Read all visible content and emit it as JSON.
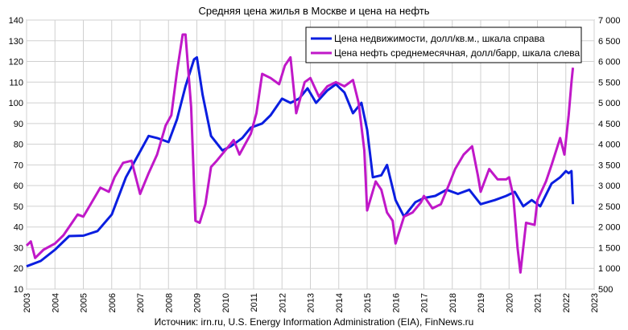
{
  "chart_data": {
    "type": "line",
    "title": "Средняя цена жилья в Москве и цена на нефть",
    "source": "Источник: irn.ru, U.S. Energy Information Administration (EIA), FinNews.ru",
    "x_ticks": [
      "2003",
      "2004",
      "2005",
      "2006",
      "2007",
      "2008",
      "2009",
      "2010",
      "2011",
      "2012",
      "2013",
      "2014",
      "2015",
      "2016",
      "2017",
      "2018",
      "2019",
      "2020",
      "2021",
      "2022",
      "2023"
    ],
    "xlim": [
      2003,
      2023
    ],
    "y_left": {
      "ylim": [
        10,
        140
      ],
      "ticks": [
        "10",
        "20",
        "30",
        "40",
        "50",
        "60",
        "70",
        "80",
        "90",
        "100",
        "110",
        "120",
        "130",
        "140"
      ]
    },
    "y_right": {
      "ylim": [
        500,
        7000
      ],
      "ticks": [
        "500",
        "1 000",
        "1 500",
        "2 000",
        "2 500",
        "3 000",
        "3 500",
        "4 000",
        "4 500",
        "5 000",
        "5 500",
        "6 000",
        "6 500",
        "7 000"
      ]
    },
    "grid": true,
    "legend_position": "top-right",
    "series": [
      {
        "name": "Цена недвижимости, долл/кв.м., шкала справа",
        "color": "#0a1ee0",
        "axis": "right",
        "points": [
          [
            2003.0,
            1050
          ],
          [
            2003.5,
            1180
          ],
          [
            2004.0,
            1450
          ],
          [
            2004.5,
            1780
          ],
          [
            2005.0,
            1790
          ],
          [
            2005.5,
            1900
          ],
          [
            2006.0,
            2300
          ],
          [
            2006.5,
            3200
          ],
          [
            2006.9,
            3700
          ],
          [
            2007.3,
            4200
          ],
          [
            2007.6,
            4150
          ],
          [
            2008.0,
            4050
          ],
          [
            2008.3,
            4600
          ],
          [
            2008.6,
            5400
          ],
          [
            2008.9,
            6050
          ],
          [
            2009.0,
            6100
          ],
          [
            2009.2,
            5200
          ],
          [
            2009.5,
            4200
          ],
          [
            2009.9,
            3850
          ],
          [
            2010.2,
            3950
          ],
          [
            2010.6,
            4150
          ],
          [
            2010.9,
            4400
          ],
          [
            2011.3,
            4500
          ],
          [
            2011.6,
            4700
          ],
          [
            2012.0,
            5100
          ],
          [
            2012.3,
            5000
          ],
          [
            2012.6,
            5100
          ],
          [
            2012.9,
            5350
          ],
          [
            2013.2,
            5000
          ],
          [
            2013.6,
            5300
          ],
          [
            2013.9,
            5450
          ],
          [
            2014.2,
            5250
          ],
          [
            2014.5,
            4750
          ],
          [
            2014.8,
            5000
          ],
          [
            2015.0,
            4350
          ],
          [
            2015.2,
            3200
          ],
          [
            2015.5,
            3250
          ],
          [
            2015.7,
            3500
          ],
          [
            2016.0,
            2650
          ],
          [
            2016.3,
            2250
          ],
          [
            2016.7,
            2600
          ],
          [
            2017.0,
            2700
          ],
          [
            2017.4,
            2750
          ],
          [
            2017.8,
            2900
          ],
          [
            2018.2,
            2800
          ],
          [
            2018.6,
            2900
          ],
          [
            2019.0,
            2550
          ],
          [
            2019.5,
            2650
          ],
          [
            2019.9,
            2750
          ],
          [
            2020.2,
            2850
          ],
          [
            2020.5,
            2500
          ],
          [
            2020.8,
            2650
          ],
          [
            2021.1,
            2500
          ],
          [
            2021.5,
            3050
          ],
          [
            2021.8,
            3200
          ],
          [
            2022.0,
            3350
          ],
          [
            2022.1,
            3300
          ],
          [
            2022.2,
            3350
          ],
          [
            2022.25,
            2550
          ]
        ]
      },
      {
        "name": "Цена нефть среднемесячная, долл/барр, шкала слева",
        "color": "#c018c8",
        "axis": "left",
        "points": [
          [
            2003.0,
            31
          ],
          [
            2003.15,
            33
          ],
          [
            2003.3,
            25
          ],
          [
            2003.6,
            29
          ],
          [
            2004.0,
            32
          ],
          [
            2004.3,
            36
          ],
          [
            2004.6,
            42
          ],
          [
            2004.8,
            46
          ],
          [
            2005.0,
            45
          ],
          [
            2005.3,
            52
          ],
          [
            2005.6,
            59
          ],
          [
            2005.9,
            57
          ],
          [
            2006.1,
            64
          ],
          [
            2006.4,
            71
          ],
          [
            2006.7,
            72
          ],
          [
            2007.0,
            56
          ],
          [
            2007.3,
            66
          ],
          [
            2007.6,
            75
          ],
          [
            2007.9,
            89
          ],
          [
            2008.1,
            94
          ],
          [
            2008.3,
            115
          ],
          [
            2008.5,
            133
          ],
          [
            2008.6,
            133
          ],
          [
            2008.8,
            98
          ],
          [
            2008.95,
            43
          ],
          [
            2009.1,
            42
          ],
          [
            2009.3,
            51
          ],
          [
            2009.5,
            69
          ],
          [
            2009.7,
            72
          ],
          [
            2010.0,
            77
          ],
          [
            2010.3,
            82
          ],
          [
            2010.5,
            75
          ],
          [
            2010.9,
            85
          ],
          [
            2011.1,
            95
          ],
          [
            2011.3,
            114
          ],
          [
            2011.6,
            112
          ],
          [
            2011.9,
            109
          ],
          [
            2012.1,
            118
          ],
          [
            2012.3,
            122
          ],
          [
            2012.5,
            95
          ],
          [
            2012.8,
            110
          ],
          [
            2013.0,
            112
          ],
          [
            2013.3,
            103
          ],
          [
            2013.6,
            108
          ],
          [
            2013.9,
            110
          ],
          [
            2014.2,
            108
          ],
          [
            2014.5,
            111
          ],
          [
            2014.7,
            100
          ],
          [
            2014.9,
            77
          ],
          [
            2015.0,
            48
          ],
          [
            2015.3,
            62
          ],
          [
            2015.5,
            58
          ],
          [
            2015.7,
            47
          ],
          [
            2015.9,
            43
          ],
          [
            2016.0,
            32
          ],
          [
            2016.3,
            45
          ],
          [
            2016.6,
            47
          ],
          [
            2016.9,
            52
          ],
          [
            2017.0,
            55
          ],
          [
            2017.3,
            49
          ],
          [
            2017.6,
            51
          ],
          [
            2017.9,
            61
          ],
          [
            2018.1,
            68
          ],
          [
            2018.4,
            75
          ],
          [
            2018.7,
            79
          ],
          [
            2018.9,
            65
          ],
          [
            2019.0,
            57
          ],
          [
            2019.3,
            68
          ],
          [
            2019.6,
            63
          ],
          [
            2019.9,
            63
          ],
          [
            2020.0,
            64
          ],
          [
            2020.15,
            55
          ],
          [
            2020.3,
            30
          ],
          [
            2020.4,
            18
          ],
          [
            2020.6,
            42
          ],
          [
            2020.9,
            41
          ],
          [
            2021.0,
            53
          ],
          [
            2021.3,
            62
          ],
          [
            2021.5,
            70
          ],
          [
            2021.8,
            83
          ],
          [
            2021.95,
            75
          ],
          [
            2022.1,
            94
          ],
          [
            2022.2,
            110
          ],
          [
            2022.25,
            117
          ]
        ]
      }
    ]
  }
}
